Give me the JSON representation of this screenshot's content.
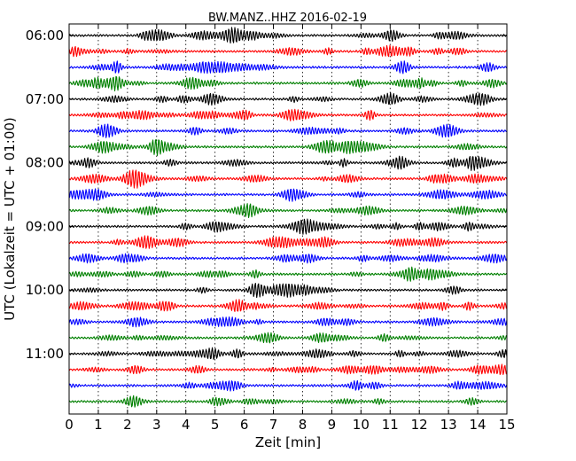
{
  "chart_data": {
    "type": "line",
    "title": "BW.MANZ..HHZ 2016-02-19",
    "xlabel": "Zeit  [min]",
    "ylabel": "UTC (Lokalzeit = UTC + 01:00)",
    "xlim": [
      0,
      15
    ],
    "x_ticks": [
      "0",
      "1",
      "2",
      "3",
      "4",
      "5",
      "6",
      "7",
      "8",
      "9",
      "10",
      "11",
      "12",
      "13",
      "14",
      "15"
    ],
    "y_ticks": [
      "06:00",
      "07:00",
      "08:00",
      "09:00",
      "10:00",
      "11:00"
    ],
    "rows_per_hour": 4,
    "row_count": 24,
    "first_row_time": "06:00",
    "last_row_time": "11:45",
    "row_minutes": 15,
    "grid": "vertical dotted at each minute",
    "colors": [
      "#000000",
      "#ff0000",
      "#0000ff",
      "#008000"
    ],
    "legend": "none"
  }
}
